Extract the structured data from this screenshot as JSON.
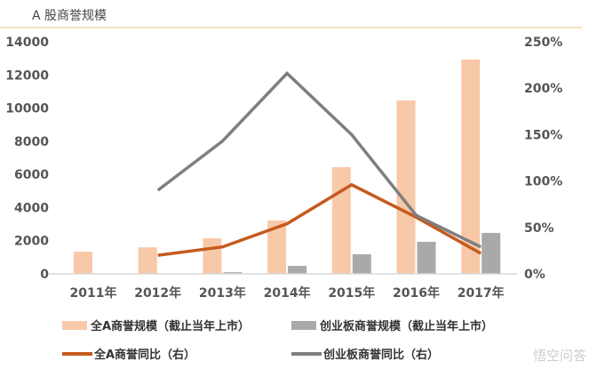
{
  "chart_data": {
    "type": "bar",
    "title": "A 股商誉规模",
    "categories": [
      "2011年",
      "2012年",
      "2013年",
      "2014年",
      "2015年",
      "2016年",
      "2017年"
    ],
    "left_axis": {
      "ylim": [
        0,
        14000
      ],
      "ticks": [
        "0",
        "2000",
        "4000",
        "6000",
        "8000",
        "10000",
        "12000",
        "14000"
      ]
    },
    "right_axis": {
      "ylim": [
        0,
        250
      ],
      "ticks": [
        "0%",
        "50%",
        "100%",
        "150%",
        "200%",
        "250%"
      ]
    },
    "series": [
      {
        "name": "全A商誉规模（截止当年上市）",
        "type": "bar",
        "axis": "left",
        "color": "#F8C9A8",
        "values": [
          1340,
          1600,
          2150,
          3220,
          6440,
          10460,
          12930
        ]
      },
      {
        "name": "创业板商誉规模（截止当年上市）",
        "type": "bar",
        "axis": "left",
        "color": "#A9A9A9",
        "values": [
          null,
          null,
          100,
          480,
          1180,
          1930,
          2470
        ]
      },
      {
        "name": "全A商誉同比（右）",
        "type": "line",
        "axis": "right",
        "color": "#C65A1E",
        "values": [
          null,
          20,
          29,
          54,
          96,
          61,
          22
        ]
      },
      {
        "name": "创业板商誉同比（右）",
        "type": "line",
        "axis": "right",
        "color": "#7F7F7F",
        "values": [
          null,
          90,
          143,
          216,
          150,
          63,
          29
        ]
      }
    ],
    "grid": false,
    "legend": "bottom"
  },
  "watermark": "悟空问答",
  "colors": {
    "header_rule": "#F0C9A0"
  }
}
